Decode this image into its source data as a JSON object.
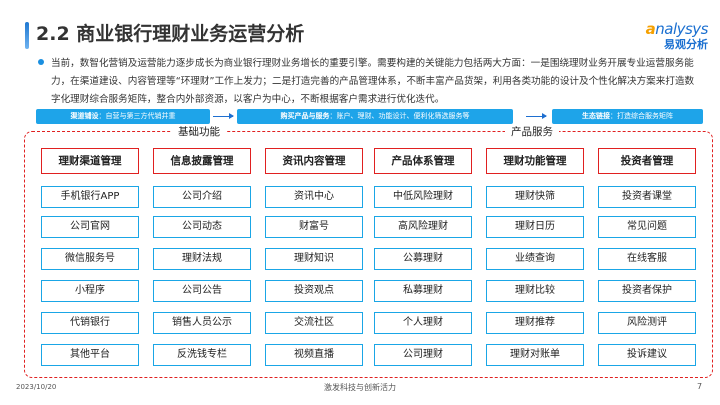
{
  "title": "2.2 商业银行理财业务运营分析",
  "logo": {
    "en_prefix": "a",
    "en_rest": "nalysys",
    "cn": "易观分析"
  },
  "intro": "当前，数智化营销及运营能力逐步成长为商业银行理财业务增长的重要引擎。需要构建的关键能力包括两大方面：一是围绕理财业务开展专业运营服务能力，在渠道建设、内容管理等“环理财”工作上发力；二是打造完善的产品管理体系，不断丰富产品货架，利用各类功能的设计及个性化解决方案来打造数字化理财综合服务矩阵，整合内外部资源，以客户为中心，不断根据客户需求进行优化迭代。",
  "banners": [
    {
      "key": "渠道铺设",
      "text": "：自营与第三方代销并重"
    },
    {
      "key": "购买产品与服务",
      "text": "：账户、理财、功能设计、便利化筛选服务等"
    },
    {
      "key": "生态链接",
      "text": "：打造综合服务矩阵"
    }
  ],
  "sections": {
    "basic": "基础功能",
    "product": "产品服务"
  },
  "columns": [
    {
      "header": "理财渠道管理",
      "items": [
        "手机银行APP",
        "公司官网",
        "微信服务号",
        "小程序",
        "代销银行",
        "其他平台"
      ]
    },
    {
      "header": "信息披露管理",
      "items": [
        "公司介绍",
        "公司动态",
        "理财法规",
        "公司公告",
        "销售人员公示",
        "反洗钱专栏"
      ]
    },
    {
      "header": "资讯内容管理",
      "items": [
        "资讯中心",
        "财富号",
        "理财知识",
        "投资观点",
        "交流社区",
        "视频直播"
      ]
    },
    {
      "header": "产品体系管理",
      "items": [
        "中低风险理财",
        "高风险理财",
        "公募理财",
        "私募理财",
        "个人理财",
        "公司理财"
      ]
    },
    {
      "header": "理财功能管理",
      "items": [
        "理财快筛",
        "理财日历",
        "业绩查询",
        "理财比较",
        "理财推荐",
        "理财对账单"
      ]
    },
    {
      "header": "投资者管理",
      "items": [
        "投资者课堂",
        "常见问题",
        "在线客服",
        "投资者保护",
        "风险测评",
        "投诉建议"
      ]
    }
  ],
  "footer": {
    "date": "2023/10/20",
    "slogan": "激发科技与创新活力",
    "page": "7"
  },
  "colors": {
    "accent_blue": "#1ea4e9",
    "header_red": "#e02020"
  }
}
